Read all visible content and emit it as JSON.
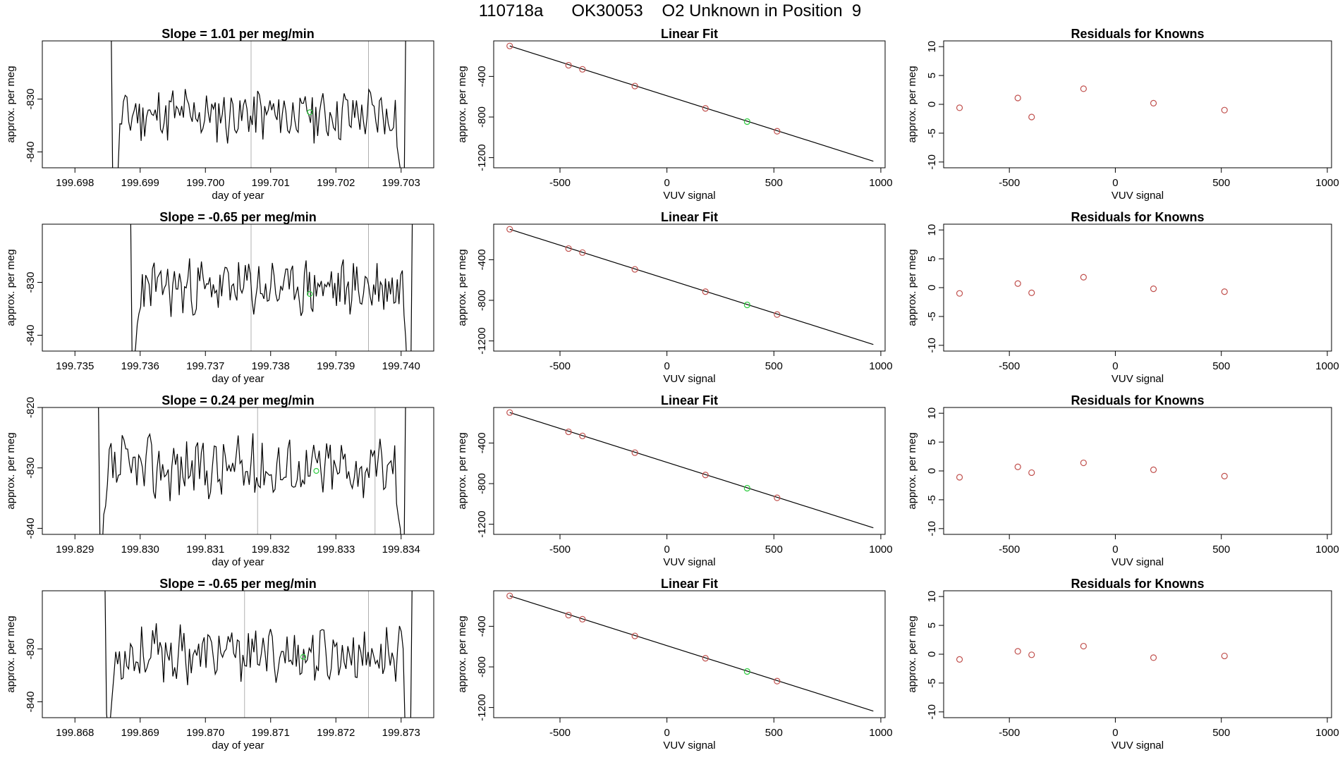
{
  "page": {
    "title": "110718a      OK30053    O2 Unknown in Position  9"
  },
  "colors": {
    "line": "#000000",
    "known": "#c0504d",
    "unknown": "#2ecc40",
    "marker": "#b0b0b0"
  },
  "chart_data": [
    {
      "type": "line",
      "row": 0,
      "kind": "timeseries",
      "title": "Slope =  1.01  per meg/min",
      "xlabel": "day of year",
      "ylabel": "approx. per meg",
      "xlim": [
        199.6975,
        199.7035
      ],
      "ylim": [
        -843,
        -819
      ],
      "xticks": [
        199.698,
        199.699,
        199.7,
        199.701,
        199.702,
        199.703
      ],
      "xtick_labels": [
        "199.698",
        "199.699",
        "199.700",
        "199.701",
        "199.702",
        "199.703"
      ],
      "yticks": [
        -830,
        -840
      ],
      "ytick_labels": [
        "-830",
        "-840"
      ],
      "vlines": [
        199.7007,
        199.7025
      ],
      "unknown_point": [
        199.7016,
        -832.5
      ],
      "trace_range": [
        199.6985,
        199.7031
      ],
      "trace_seed": 11,
      "trace_mean": -833
    },
    {
      "type": "scatter",
      "row": 0,
      "kind": "fit",
      "title": "Linear Fit",
      "xlabel": "VUV signal",
      "ylabel": "approx. per meg",
      "xlim": [
        -810,
        1020
      ],
      "ylim": [
        -1300,
        -50
      ],
      "xticks": [
        -500,
        0,
        500,
        1000
      ],
      "xtick_labels": [
        "-500",
        "0",
        "500",
        "1000"
      ],
      "yticks": [
        -400,
        -800,
        -1200
      ],
      "ytick_labels": [
        "-400",
        "-800",
        "-1200"
      ],
      "fit_line": {
        "x": [
          -735,
          965
        ],
        "y": [
          -100,
          -1235
        ]
      },
      "known_points": [
        [
          -735,
          -100
        ],
        [
          -460,
          -290
        ],
        [
          -395,
          -330
        ],
        [
          -150,
          -495
        ],
        [
          180,
          -715
        ],
        [
          515,
          -940
        ]
      ],
      "unknown_points": [
        [
          375,
          -845
        ]
      ]
    },
    {
      "type": "scatter",
      "row": 0,
      "kind": "residual",
      "title": "Residuals for Knowns",
      "xlabel": "VUV signal",
      "ylabel": "approx. per meg",
      "xlim": [
        -810,
        1020
      ],
      "ylim": [
        -11,
        11
      ],
      "xticks": [
        -500,
        0,
        500,
        1000
      ],
      "xtick_labels": [
        "-500",
        "0",
        "500",
        "1000"
      ],
      "yticks": [
        -10,
        -5,
        0,
        5,
        10
      ],
      "ytick_labels": [
        "-10",
        "-5",
        "0",
        "5",
        "10"
      ],
      "points": [
        [
          -735,
          -0.6
        ],
        [
          -460,
          1.1
        ],
        [
          -395,
          -2.2
        ],
        [
          -150,
          2.7
        ],
        [
          180,
          0.2
        ],
        [
          515,
          -1.0
        ]
      ]
    },
    {
      "type": "line",
      "row": 1,
      "kind": "timeseries",
      "title": "Slope =  -0.65  per meg/min",
      "xlabel": "day of year",
      "ylabel": "approx. per meg",
      "xlim": [
        199.7345,
        199.7405
      ],
      "ylim": [
        -843,
        -819
      ],
      "xticks": [
        199.735,
        199.736,
        199.737,
        199.738,
        199.739,
        199.74
      ],
      "xtick_labels": [
        "199.735",
        "199.736",
        "199.737",
        "199.738",
        "199.739",
        "199.740"
      ],
      "yticks": [
        -830,
        -840
      ],
      "ytick_labels": [
        "-830",
        "-840"
      ],
      "vlines": [
        199.7377,
        199.7395
      ],
      "unknown_point": [
        199.7386,
        -832.2
      ],
      "trace_range": [
        199.7358,
        199.7402
      ],
      "trace_seed": 23,
      "trace_mean": -831
    },
    {
      "type": "scatter",
      "row": 1,
      "kind": "fit",
      "title": "Linear Fit",
      "xlabel": "VUV signal",
      "ylabel": "approx. per meg",
      "xlim": [
        -810,
        1020
      ],
      "ylim": [
        -1300,
        -50
      ],
      "xticks": [
        -500,
        0,
        500,
        1000
      ],
      "xtick_labels": [
        "-500",
        "0",
        "500",
        "1000"
      ],
      "yticks": [
        -400,
        -800,
        -1200
      ],
      "ytick_labels": [
        "-400",
        "-800",
        "-1200"
      ],
      "fit_line": {
        "x": [
          -735,
          965
        ],
        "y": [
          -100,
          -1235
        ]
      },
      "known_points": [
        [
          -735,
          -100
        ],
        [
          -460,
          -290
        ],
        [
          -395,
          -330
        ],
        [
          -150,
          -495
        ],
        [
          180,
          -715
        ],
        [
          515,
          -940
        ]
      ],
      "unknown_points": [
        [
          375,
          -845
        ]
      ]
    },
    {
      "type": "scatter",
      "row": 1,
      "kind": "residual",
      "title": "Residuals for Knowns",
      "xlabel": "VUV signal",
      "ylabel": "approx. per meg",
      "xlim": [
        -810,
        1020
      ],
      "ylim": [
        -11,
        11
      ],
      "xticks": [
        -500,
        0,
        500,
        1000
      ],
      "xtick_labels": [
        "-500",
        "0",
        "500",
        "1000"
      ],
      "yticks": [
        -10,
        -5,
        0,
        5,
        10
      ],
      "ytick_labels": [
        "-10",
        "-5",
        "0",
        "5",
        "10"
      ],
      "points": [
        [
          -735,
          -1.0
        ],
        [
          -460,
          0.7
        ],
        [
          -395,
          -0.9
        ],
        [
          -150,
          1.8
        ],
        [
          180,
          -0.2
        ],
        [
          515,
          -0.7
        ]
      ]
    },
    {
      "type": "line",
      "row": 2,
      "kind": "timeseries",
      "title": "Slope =  0.24  per meg/min",
      "xlabel": "day of year",
      "ylabel": "approx. per meg",
      "xlim": [
        199.8285,
        199.8345
      ],
      "ylim": [
        -841,
        -820
      ],
      "xticks": [
        199.829,
        199.83,
        199.831,
        199.832,
        199.833,
        199.834
      ],
      "xtick_labels": [
        "199.829",
        "199.830",
        "199.831",
        "199.832",
        "199.833",
        "199.834"
      ],
      "yticks": [
        -820,
        -830,
        -840
      ],
      "ytick_labels": [
        "-820",
        "-830",
        "-840"
      ],
      "vlines": [
        199.8318,
        199.8336
      ],
      "unknown_point": [
        199.8327,
        -830.5
      ],
      "trace_range": [
        199.8293,
        199.8341
      ],
      "trace_seed": 37,
      "trace_mean": -830
    },
    {
      "type": "scatter",
      "row": 2,
      "kind": "fit",
      "title": "Linear Fit",
      "xlabel": "VUV signal",
      "ylabel": "approx. per meg",
      "xlim": [
        -810,
        1020
      ],
      "ylim": [
        -1300,
        -50
      ],
      "xticks": [
        -500,
        0,
        500,
        1000
      ],
      "xtick_labels": [
        "-500",
        "0",
        "500",
        "1000"
      ],
      "yticks": [
        -400,
        -800,
        -1200
      ],
      "ytick_labels": [
        "-400",
        "-800",
        "-1200"
      ],
      "fit_line": {
        "x": [
          -735,
          965
        ],
        "y": [
          -100,
          -1235
        ]
      },
      "known_points": [
        [
          -735,
          -100
        ],
        [
          -460,
          -290
        ],
        [
          -395,
          -330
        ],
        [
          -150,
          -495
        ],
        [
          180,
          -715
        ],
        [
          515,
          -940
        ]
      ],
      "unknown_points": [
        [
          375,
          -845
        ]
      ]
    },
    {
      "type": "scatter",
      "row": 2,
      "kind": "residual",
      "title": "Residuals for Knowns",
      "xlabel": "VUV signal",
      "ylabel": "approx. per meg",
      "xlim": [
        -810,
        1020
      ],
      "ylim": [
        -11,
        11
      ],
      "xticks": [
        -500,
        0,
        500,
        1000
      ],
      "xtick_labels": [
        "-500",
        "0",
        "500",
        "1000"
      ],
      "yticks": [
        -10,
        -5,
        0,
        5,
        10
      ],
      "ytick_labels": [
        "-10",
        "-5",
        "0",
        "5",
        "10"
      ],
      "points": [
        [
          -735,
          -1.1
        ],
        [
          -460,
          0.7
        ],
        [
          -395,
          -0.3
        ],
        [
          -150,
          1.4
        ],
        [
          180,
          0.2
        ],
        [
          515,
          -0.9
        ]
      ]
    },
    {
      "type": "line",
      "row": 3,
      "kind": "timeseries",
      "title": "Slope =  -0.65  per meg/min",
      "xlabel": "day of year",
      "ylabel": "approx. per meg",
      "xlim": [
        199.8675,
        199.8735
      ],
      "ylim": [
        -843,
        -819
      ],
      "xticks": [
        199.868,
        199.869,
        199.87,
        199.871,
        199.872,
        199.873
      ],
      "xtick_labels": [
        "199.868",
        "199.869",
        "199.870",
        "199.871",
        "199.872",
        "199.873"
      ],
      "yticks": [
        -830,
        -840
      ],
      "ytick_labels": [
        "-830",
        "-840"
      ],
      "vlines": [
        199.8706,
        199.8725
      ],
      "unknown_point": [
        199.8715,
        -831.5
      ],
      "trace_range": [
        199.8684,
        199.8732
      ],
      "trace_seed": 53,
      "trace_mean": -831
    },
    {
      "type": "scatter",
      "row": 3,
      "kind": "fit",
      "title": "Linear Fit",
      "xlabel": "VUV signal",
      "ylabel": "approx. per meg",
      "xlim": [
        -810,
        1020
      ],
      "ylim": [
        -1300,
        -50
      ],
      "xticks": [
        -500,
        0,
        500,
        1000
      ],
      "xtick_labels": [
        "-500",
        "0",
        "500",
        "1000"
      ],
      "yticks": [
        -400,
        -800,
        -1200
      ],
      "ytick_labels": [
        "-400",
        "-800",
        "-1200"
      ],
      "fit_line": {
        "x": [
          -735,
          965
        ],
        "y": [
          -100,
          -1235
        ]
      },
      "known_points": [
        [
          -735,
          -100
        ],
        [
          -460,
          -290
        ],
        [
          -395,
          -330
        ],
        [
          -150,
          -495
        ],
        [
          180,
          -715
        ],
        [
          515,
          -940
        ]
      ],
      "unknown_points": [
        [
          375,
          -845
        ]
      ]
    },
    {
      "type": "scatter",
      "row": 3,
      "kind": "residual",
      "title": "Residuals for Knowns",
      "xlabel": "VUV signal",
      "ylabel": "approx. per meg",
      "xlim": [
        -810,
        1020
      ],
      "ylim": [
        -11,
        11
      ],
      "xticks": [
        -500,
        0,
        500,
        1000
      ],
      "xtick_labels": [
        "-500",
        "0",
        "500",
        "1000"
      ],
      "yticks": [
        -10,
        -5,
        0,
        5,
        10
      ],
      "ytick_labels": [
        "-10",
        "-5",
        "0",
        "5",
        "10"
      ],
      "points": [
        [
          -735,
          -0.9
        ],
        [
          -460,
          0.5
        ],
        [
          -395,
          -0.1
        ],
        [
          -150,
          1.4
        ],
        [
          180,
          -0.6
        ],
        [
          515,
          -0.3
        ]
      ]
    }
  ]
}
